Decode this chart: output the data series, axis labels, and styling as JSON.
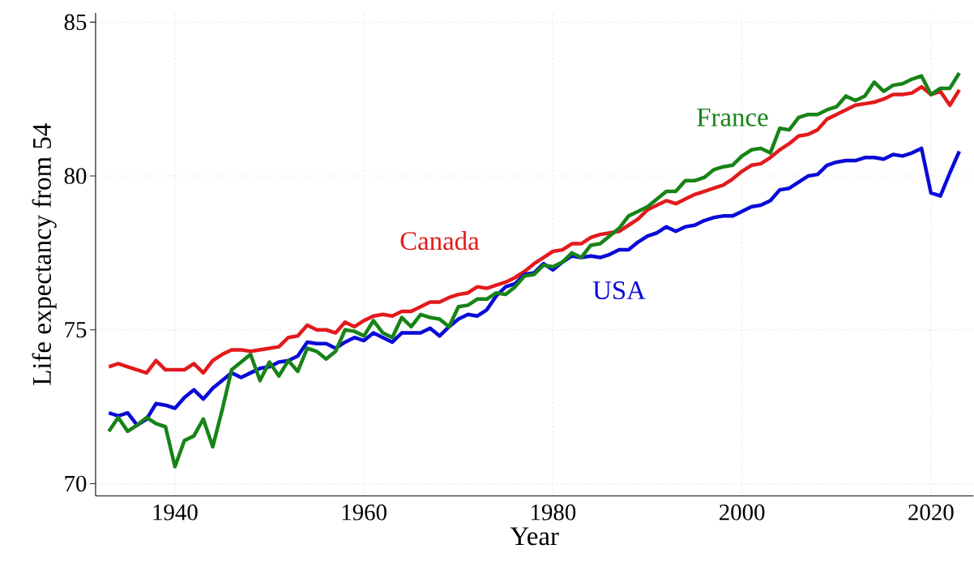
{
  "chart_data": {
    "type": "line",
    "xlabel": "Year",
    "ylabel": "Life expectancy from 54",
    "x": [
      1933,
      1934,
      1935,
      1936,
      1937,
      1938,
      1939,
      1940,
      1941,
      1942,
      1943,
      1944,
      1945,
      1946,
      1947,
      1948,
      1949,
      1950,
      1951,
      1952,
      1953,
      1954,
      1955,
      1956,
      1957,
      1958,
      1959,
      1960,
      1961,
      1962,
      1963,
      1964,
      1965,
      1966,
      1967,
      1968,
      1969,
      1970,
      1971,
      1972,
      1973,
      1974,
      1975,
      1976,
      1977,
      1978,
      1979,
      1980,
      1981,
      1982,
      1983,
      1984,
      1985,
      1986,
      1987,
      1988,
      1989,
      1990,
      1991,
      1992,
      1993,
      1994,
      1995,
      1996,
      1997,
      1998,
      1999,
      2000,
      2001,
      2002,
      2003,
      2004,
      2005,
      2006,
      2007,
      2008,
      2009,
      2010,
      2011,
      2012,
      2013,
      2014,
      2015,
      2016,
      2017,
      2018,
      2019,
      2020,
      2021,
      2022,
      2023
    ],
    "series": [
      {
        "name": "Canada",
        "color": "#e31a1c",
        "values": [
          73.8,
          73.9,
          73.8,
          73.7,
          73.6,
          74.0,
          73.7,
          73.7,
          73.7,
          73.9,
          73.6,
          74.0,
          74.2,
          74.35,
          74.35,
          74.3,
          74.35,
          74.4,
          74.45,
          74.75,
          74.8,
          75.15,
          75.0,
          75.0,
          74.9,
          75.25,
          75.1,
          75.3,
          75.45,
          75.5,
          75.45,
          75.6,
          75.6,
          75.75,
          75.9,
          75.9,
          76.05,
          76.15,
          76.2,
          76.4,
          76.35,
          76.45,
          76.55,
          76.7,
          76.9,
          77.15,
          77.35,
          77.55,
          77.6,
          77.8,
          77.8,
          78.0,
          78.1,
          78.15,
          78.2,
          78.4,
          78.6,
          78.9,
          79.05,
          79.2,
          79.1,
          79.25,
          79.4,
          79.5,
          79.6,
          79.7,
          79.9,
          80.15,
          80.35,
          80.4,
          80.6,
          80.85,
          81.05,
          81.3,
          81.35,
          81.5,
          81.85,
          82.0,
          82.15,
          82.3,
          82.35,
          82.4,
          82.5,
          82.65,
          82.65,
          82.7,
          82.9,
          82.65,
          82.75,
          82.3,
          82.8
        ]
      },
      {
        "name": "USA",
        "color": "#0a0ad8",
        "values": [
          72.3,
          72.2,
          72.3,
          71.9,
          72.1,
          72.6,
          72.55,
          72.45,
          72.8,
          73.05,
          72.75,
          73.1,
          73.35,
          73.6,
          73.45,
          73.6,
          73.75,
          73.8,
          73.95,
          74.0,
          74.15,
          74.6,
          74.55,
          74.55,
          74.4,
          74.6,
          74.75,
          74.65,
          74.9,
          74.75,
          74.6,
          74.9,
          74.9,
          74.9,
          75.05,
          74.8,
          75.1,
          75.35,
          75.5,
          75.45,
          75.65,
          76.1,
          76.4,
          76.5,
          76.8,
          76.85,
          77.15,
          76.95,
          77.2,
          77.4,
          77.35,
          77.4,
          77.35,
          77.45,
          77.6,
          77.6,
          77.85,
          78.05,
          78.15,
          78.35,
          78.2,
          78.35,
          78.4,
          78.55,
          78.65,
          78.7,
          78.7,
          78.85,
          79.0,
          79.05,
          79.2,
          79.55,
          79.6,
          79.8,
          80.0,
          80.05,
          80.35,
          80.45,
          80.5,
          80.5,
          80.6,
          80.6,
          80.55,
          80.7,
          80.65,
          80.75,
          80.9,
          79.45,
          79.35,
          80.1,
          80.8
        ]
      },
      {
        "name": "France",
        "color": "#178317",
        "values": [
          71.7,
          72.15,
          71.7,
          71.9,
          72.15,
          71.95,
          71.85,
          70.55,
          71.4,
          71.55,
          72.1,
          71.2,
          72.4,
          73.7,
          73.95,
          74.2,
          73.35,
          73.95,
          73.5,
          74.0,
          73.65,
          74.4,
          74.3,
          74.05,
          74.3,
          75.0,
          74.95,
          74.8,
          75.3,
          74.9,
          74.75,
          75.4,
          75.1,
          75.5,
          75.4,
          75.35,
          75.1,
          75.75,
          75.8,
          76.0,
          76.0,
          76.2,
          76.15,
          76.4,
          76.75,
          76.8,
          77.1,
          77.05,
          77.2,
          77.5,
          77.35,
          77.75,
          77.8,
          78.05,
          78.3,
          78.7,
          78.85,
          79.0,
          79.25,
          79.5,
          79.5,
          79.85,
          79.85,
          79.95,
          80.2,
          80.3,
          80.35,
          80.65,
          80.85,
          80.9,
          80.75,
          81.55,
          81.5,
          81.9,
          82.0,
          82.0,
          82.15,
          82.25,
          82.6,
          82.45,
          82.6,
          83.05,
          82.75,
          82.95,
          83.0,
          83.15,
          83.25,
          82.65,
          82.85,
          82.85,
          83.35
        ]
      }
    ],
    "xlim": [
      1931.6,
      2024.5
    ],
    "ylim": [
      69.6,
      85.3
    ],
    "xticks": [
      1940,
      1960,
      1980,
      2000,
      2020
    ],
    "yticks": [
      70,
      75,
      80,
      85
    ],
    "grid": true,
    "marker": "none",
    "line_style": "solid"
  }
}
